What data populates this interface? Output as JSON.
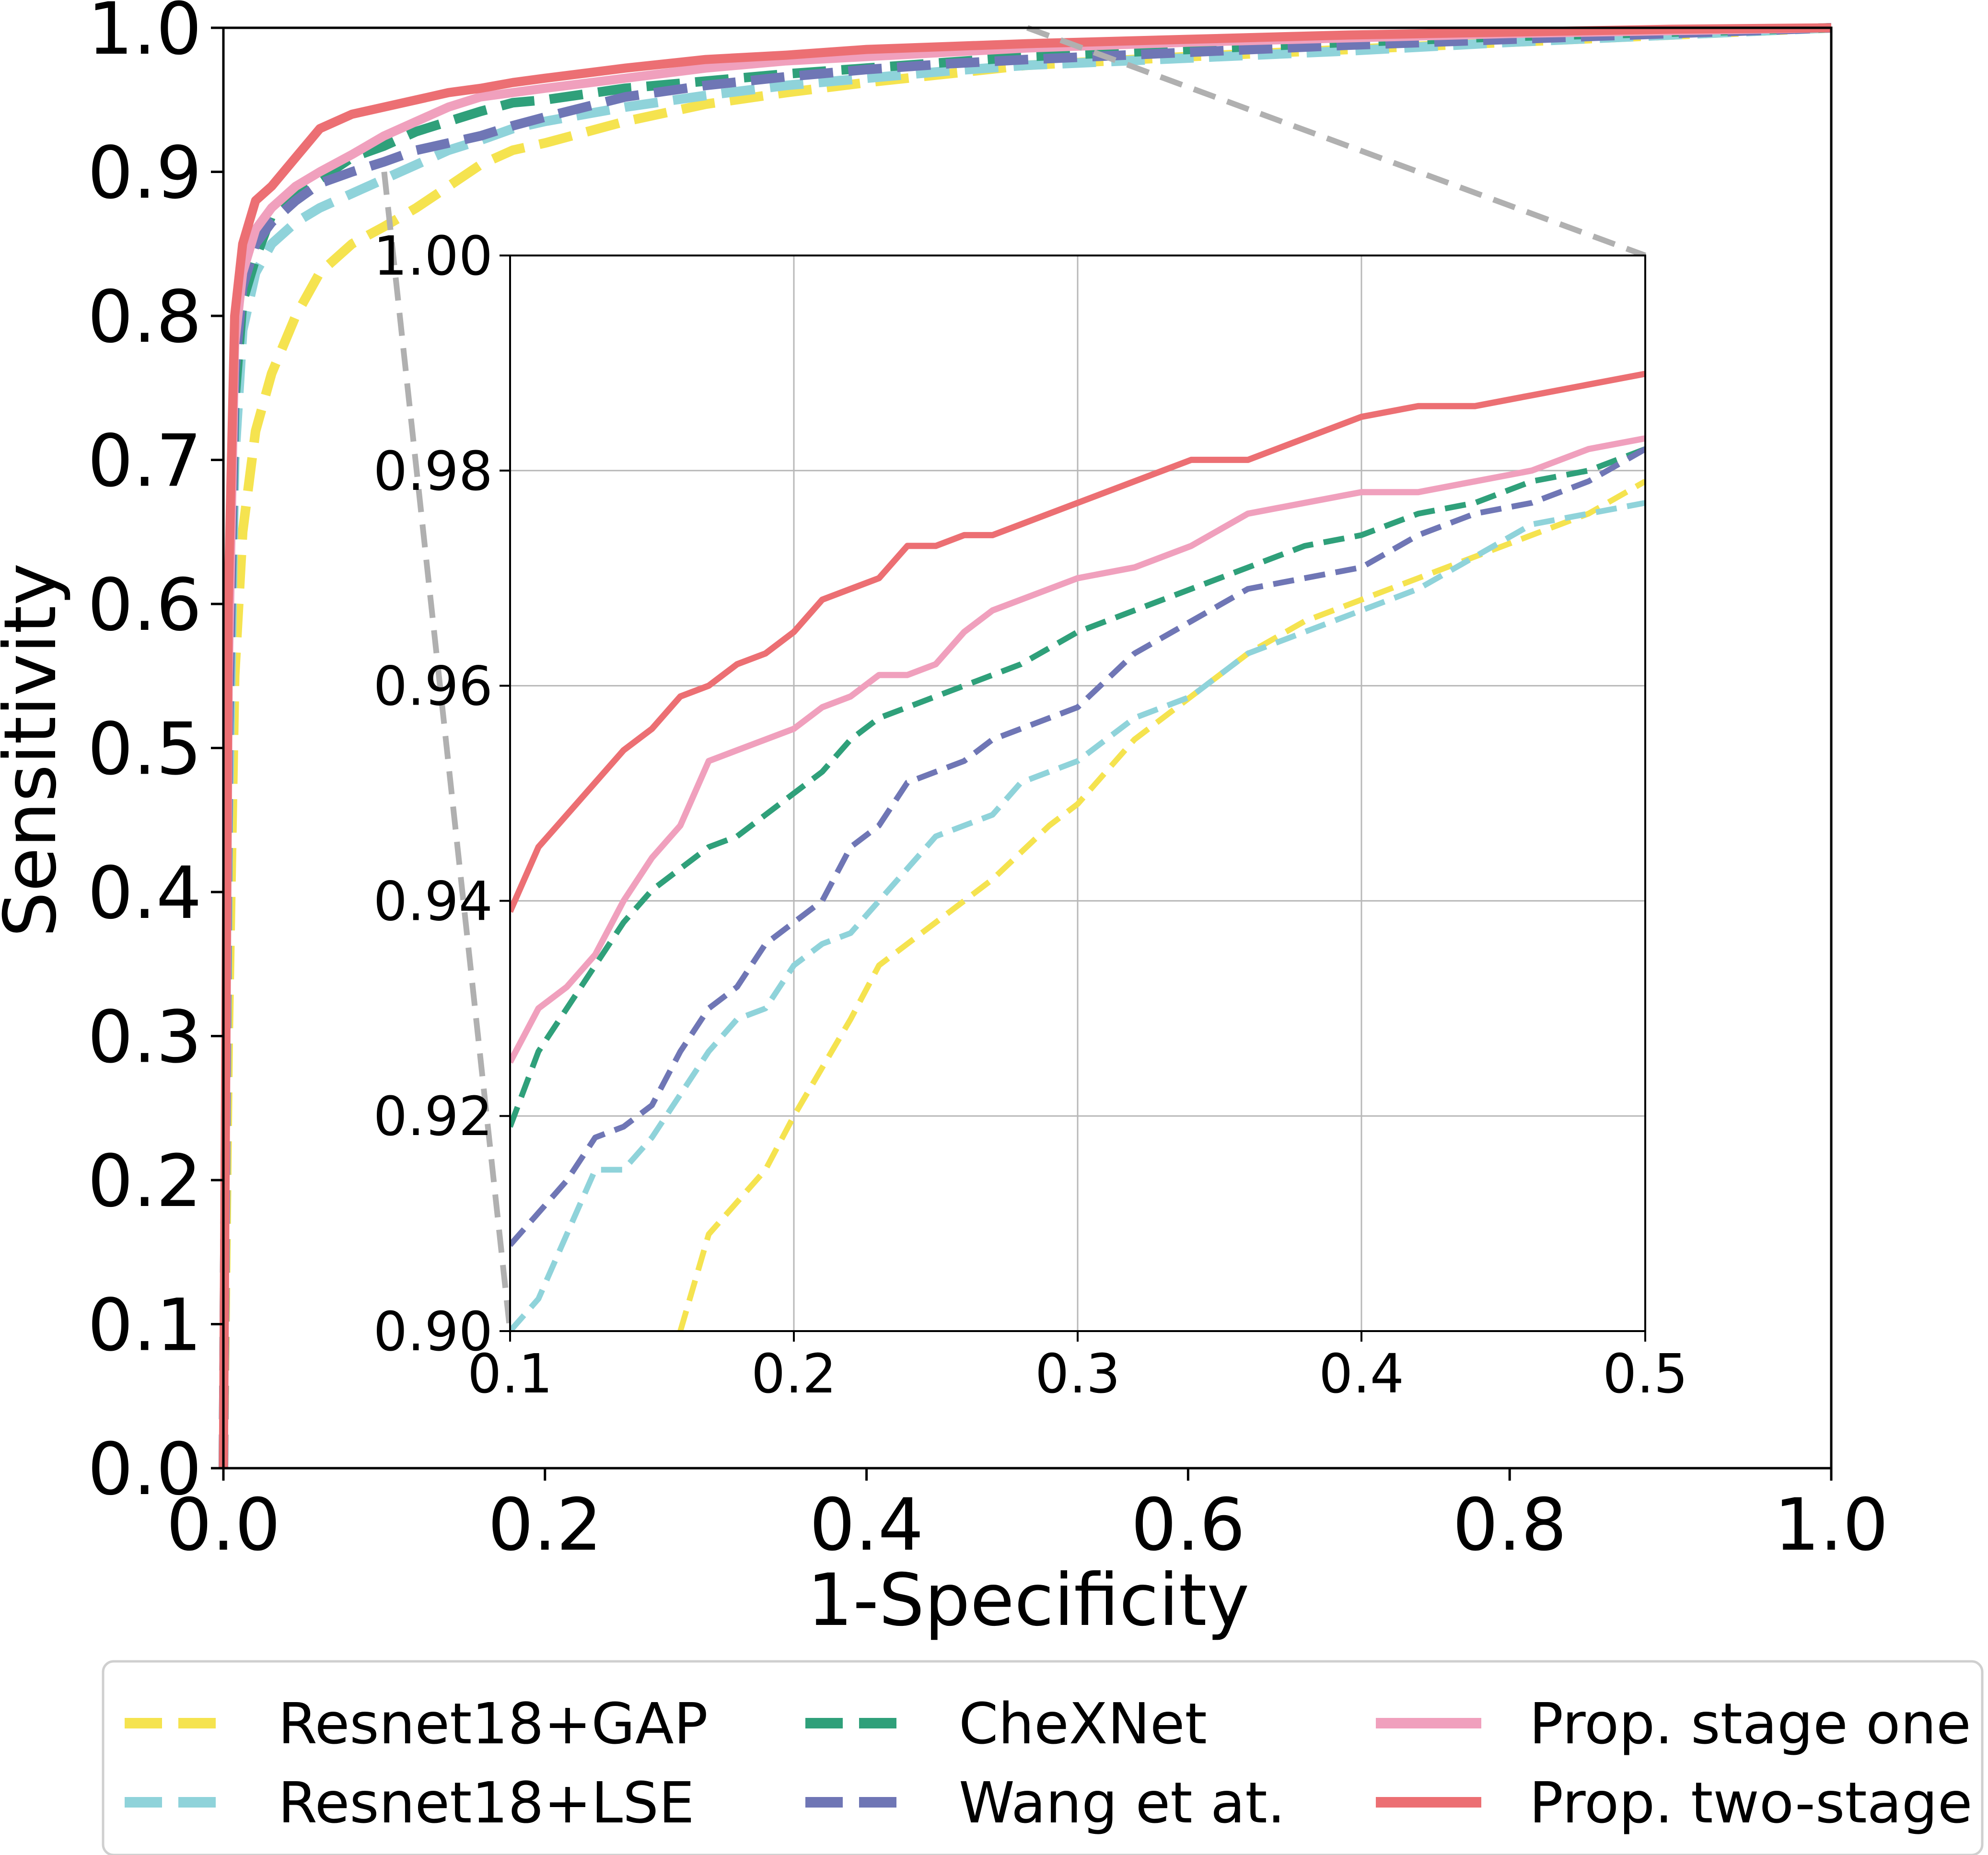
{
  "chart_data": [
    {
      "type": "line",
      "title": "",
      "xlabel": "1-Specificity",
      "ylabel": "Sensitivity",
      "xlim": [
        0,
        1
      ],
      "ylim": [
        0,
        1
      ],
      "xticks": [
        0.0,
        0.2,
        0.4,
        0.6,
        0.8,
        1.0
      ],
      "yticks": [
        0.0,
        0.1,
        0.2,
        0.3,
        0.4,
        0.5,
        0.6,
        0.7,
        0.8,
        0.9,
        1.0
      ],
      "xtick_labels": [
        "0.0",
        "0.2",
        "0.4",
        "0.6",
        "0.8",
        "1.0"
      ],
      "ytick_labels": [
        "0.0",
        "0.1",
        "0.2",
        "0.3",
        "0.4",
        "0.5",
        "0.6",
        "0.7",
        "0.8",
        "0.9",
        "1.0"
      ],
      "grid": false,
      "legend_position": "bottom",
      "series": [
        {
          "name": "Resnet18+GAP",
          "color": "#f5e34f",
          "style": "dashed",
          "x": [
            0,
            0.003,
            0.007,
            0.012,
            0.02,
            0.03,
            0.045,
            0.06,
            0.08,
            0.1,
            0.12,
            0.14,
            0.16,
            0.18,
            0.2,
            0.25,
            0.3,
            0.35,
            0.4,
            0.45,
            0.5,
            0.6,
            0.7,
            0.8,
            0.9,
            1.0
          ],
          "y": [
            0,
            0.3,
            0.55,
            0.65,
            0.72,
            0.76,
            0.8,
            0.83,
            0.85,
            0.862,
            0.875,
            0.89,
            0.905,
            0.915,
            0.92,
            0.935,
            0.947,
            0.955,
            0.962,
            0.968,
            0.974,
            0.98,
            0.985,
            0.99,
            0.995,
            1.0
          ]
        },
        {
          "name": "Resnet18+LSE",
          "color": "#8fd3da",
          "style": "dashed",
          "x": [
            0,
            0.003,
            0.007,
            0.012,
            0.02,
            0.03,
            0.045,
            0.06,
            0.08,
            0.1,
            0.12,
            0.14,
            0.16,
            0.18,
            0.2,
            0.25,
            0.3,
            0.35,
            0.4,
            0.45,
            0.5,
            0.6,
            0.7,
            0.8,
            0.9,
            1.0
          ],
          "y": [
            0,
            0.45,
            0.7,
            0.79,
            0.83,
            0.85,
            0.865,
            0.875,
            0.885,
            0.895,
            0.905,
            0.915,
            0.922,
            0.93,
            0.935,
            0.945,
            0.953,
            0.96,
            0.965,
            0.97,
            0.974,
            0.979,
            0.984,
            0.99,
            0.995,
            1.0
          ]
        },
        {
          "name": "CheXNet",
          "color": "#2fa07a",
          "style": "dashed",
          "x": [
            0,
            0.003,
            0.007,
            0.012,
            0.02,
            0.03,
            0.045,
            0.06,
            0.08,
            0.1,
            0.12,
            0.14,
            0.16,
            0.18,
            0.2,
            0.25,
            0.3,
            0.35,
            0.4,
            0.45,
            0.5,
            0.6,
            0.7,
            0.8,
            0.9,
            1.0
          ],
          "y": [
            0,
            0.5,
            0.74,
            0.81,
            0.84,
            0.87,
            0.885,
            0.895,
            0.91,
            0.918,
            0.928,
            0.935,
            0.942,
            0.948,
            0.95,
            0.958,
            0.963,
            0.968,
            0.972,
            0.976,
            0.98,
            0.985,
            0.99,
            0.994,
            0.997,
            1.0
          ]
        },
        {
          "name": "Wang et at.",
          "color": "#6f76b5",
          "style": "dashed",
          "x": [
            0,
            0.003,
            0.007,
            0.012,
            0.02,
            0.03,
            0.045,
            0.06,
            0.08,
            0.1,
            0.12,
            0.14,
            0.16,
            0.18,
            0.2,
            0.25,
            0.3,
            0.35,
            0.4,
            0.45,
            0.5,
            0.6,
            0.7,
            0.8,
            0.9,
            1.0
          ],
          "y": [
            0,
            0.5,
            0.76,
            0.82,
            0.85,
            0.865,
            0.88,
            0.892,
            0.9,
            0.907,
            0.915,
            0.92,
            0.925,
            0.932,
            0.938,
            0.952,
            0.96,
            0.966,
            0.971,
            0.975,
            0.978,
            0.983,
            0.988,
            0.992,
            0.996,
            1.0
          ]
        },
        {
          "name": "Prop. stage one",
          "color": "#f0a0bd",
          "style": "solid",
          "x": [
            0,
            0.003,
            0.007,
            0.012,
            0.02,
            0.03,
            0.045,
            0.06,
            0.08,
            0.1,
            0.12,
            0.14,
            0.16,
            0.18,
            0.2,
            0.25,
            0.3,
            0.35,
            0.4,
            0.45,
            0.5,
            0.6,
            0.7,
            0.8,
            0.9,
            1.0
          ],
          "y": [
            0,
            0.55,
            0.78,
            0.83,
            0.86,
            0.875,
            0.89,
            0.9,
            0.912,
            0.925,
            0.935,
            0.945,
            0.952,
            0.955,
            0.958,
            0.965,
            0.972,
            0.977,
            0.98,
            0.983,
            0.986,
            0.99,
            0.993,
            0.996,
            0.998,
            1.0
          ]
        },
        {
          "name": "Prop. two-stage",
          "color": "#ec6f73",
          "style": "solid",
          "x": [
            0,
            0.003,
            0.007,
            0.012,
            0.02,
            0.03,
            0.045,
            0.06,
            0.08,
            0.1,
            0.12,
            0.14,
            0.16,
            0.18,
            0.2,
            0.25,
            0.3,
            0.35,
            0.4,
            0.45,
            0.5,
            0.6,
            0.7,
            0.8,
            0.9,
            1.0
          ],
          "y": [
            0,
            0.6,
            0.8,
            0.85,
            0.88,
            0.89,
            0.91,
            0.93,
            0.94,
            0.945,
            0.95,
            0.955,
            0.958,
            0.962,
            0.965,
            0.972,
            0.978,
            0.981,
            0.985,
            0.987,
            0.989,
            0.992,
            0.995,
            0.997,
            0.999,
            1.0
          ]
        }
      ]
    },
    {
      "type": "line",
      "title": "",
      "xlabel": "",
      "ylabel": "",
      "xlim": [
        0.1,
        0.5
      ],
      "ylim": [
        0.9,
        1.0
      ],
      "xticks": [
        0.1,
        0.2,
        0.3,
        0.4,
        0.5
      ],
      "yticks": [
        0.9,
        0.92,
        0.94,
        0.96,
        0.98,
        1.0
      ],
      "xtick_labels": [
        "0.1",
        "0.2",
        "0.3",
        "0.4",
        "0.5"
      ],
      "ytick_labels": [
        "0.90",
        "0.92",
        "0.94",
        "0.96",
        "0.98",
        "1.00"
      ],
      "grid": true,
      "legend_position": "none",
      "series": [
        {
          "name": "Resnet18+GAP",
          "color": "#f5e34f",
          "style": "dashed",
          "x": [
            0.16,
            0.17,
            0.19,
            0.2,
            0.22,
            0.23,
            0.25,
            0.27,
            0.29,
            0.3,
            0.32,
            0.34,
            0.36,
            0.38,
            0.4,
            0.42,
            0.44,
            0.46,
            0.48,
            0.5
          ],
          "y": [
            0.9,
            0.909,
            0.915,
            0.92,
            0.929,
            0.934,
            0.938,
            0.942,
            0.947,
            0.949,
            0.955,
            0.959,
            0.963,
            0.966,
            0.968,
            0.97,
            0.972,
            0.974,
            0.976,
            0.979
          ]
        },
        {
          "name": "Resnet18+LSE",
          "color": "#8fd3da",
          "style": "dashed",
          "x": [
            0.1,
            0.11,
            0.12,
            0.13,
            0.14,
            0.15,
            0.16,
            0.17,
            0.18,
            0.19,
            0.2,
            0.21,
            0.22,
            0.23,
            0.24,
            0.25,
            0.26,
            0.27,
            0.28,
            0.3,
            0.32,
            0.34,
            0.36,
            0.38,
            0.4,
            0.42,
            0.44,
            0.46,
            0.48,
            0.5
          ],
          "y": [
            0.9,
            0.903,
            0.909,
            0.915,
            0.915,
            0.918,
            0.922,
            0.926,
            0.929,
            0.93,
            0.934,
            0.936,
            0.937,
            0.94,
            0.943,
            0.946,
            0.947,
            0.948,
            0.951,
            0.953,
            0.957,
            0.959,
            0.963,
            0.965,
            0.967,
            0.969,
            0.972,
            0.975,
            0.976,
            0.977
          ]
        },
        {
          "name": "CheXNet",
          "color": "#2fa07a",
          "style": "dashed",
          "x": [
            0.1,
            0.11,
            0.12,
            0.13,
            0.14,
            0.15,
            0.16,
            0.17,
            0.18,
            0.19,
            0.2,
            0.21,
            0.22,
            0.23,
            0.24,
            0.25,
            0.26,
            0.27,
            0.28,
            0.3,
            0.32,
            0.34,
            0.36,
            0.38,
            0.4,
            0.42,
            0.44,
            0.46,
            0.48,
            0.5
          ],
          "y": [
            0.919,
            0.926,
            0.93,
            0.934,
            0.938,
            0.941,
            0.943,
            0.945,
            0.946,
            0.948,
            0.95,
            0.952,
            0.955,
            0.957,
            0.958,
            0.959,
            0.96,
            0.961,
            0.962,
            0.965,
            0.967,
            0.969,
            0.971,
            0.973,
            0.974,
            0.976,
            0.977,
            0.979,
            0.98,
            0.982
          ]
        },
        {
          "name": "Wang et at.",
          "color": "#6f76b5",
          "style": "dashed",
          "x": [
            0.1,
            0.11,
            0.12,
            0.13,
            0.14,
            0.15,
            0.16,
            0.17,
            0.18,
            0.19,
            0.2,
            0.21,
            0.22,
            0.23,
            0.24,
            0.25,
            0.26,
            0.27,
            0.28,
            0.3,
            0.32,
            0.34,
            0.36,
            0.38,
            0.4,
            0.42,
            0.44,
            0.46,
            0.48,
            0.5
          ],
          "y": [
            0.908,
            0.911,
            0.914,
            0.918,
            0.919,
            0.921,
            0.926,
            0.93,
            0.932,
            0.936,
            0.938,
            0.94,
            0.945,
            0.947,
            0.951,
            0.952,
            0.953,
            0.955,
            0.956,
            0.958,
            0.963,
            0.966,
            0.969,
            0.97,
            0.971,
            0.974,
            0.976,
            0.977,
            0.979,
            0.982
          ]
        },
        {
          "name": "Prop. stage one",
          "color": "#f0a0bd",
          "style": "solid",
          "x": [
            0.1,
            0.11,
            0.12,
            0.13,
            0.14,
            0.15,
            0.16,
            0.17,
            0.18,
            0.19,
            0.2,
            0.21,
            0.22,
            0.23,
            0.24,
            0.25,
            0.26,
            0.27,
            0.28,
            0.3,
            0.32,
            0.34,
            0.36,
            0.38,
            0.4,
            0.42,
            0.44,
            0.46,
            0.48,
            0.5
          ],
          "y": [
            0.925,
            0.93,
            0.932,
            0.935,
            0.94,
            0.944,
            0.947,
            0.953,
            0.954,
            0.955,
            0.956,
            0.958,
            0.959,
            0.961,
            0.961,
            0.962,
            0.965,
            0.967,
            0.968,
            0.97,
            0.971,
            0.973,
            0.976,
            0.977,
            0.978,
            0.978,
            0.979,
            0.98,
            0.982,
            0.983
          ]
        },
        {
          "name": "Prop. two-stage",
          "color": "#ec6f73",
          "style": "solid",
          "x": [
            0.1,
            0.11,
            0.12,
            0.13,
            0.14,
            0.15,
            0.16,
            0.17,
            0.18,
            0.19,
            0.2,
            0.21,
            0.22,
            0.23,
            0.24,
            0.25,
            0.26,
            0.27,
            0.28,
            0.3,
            0.32,
            0.34,
            0.36,
            0.38,
            0.4,
            0.42,
            0.44,
            0.46,
            0.48,
            0.5
          ],
          "y": [
            0.939,
            0.945,
            0.948,
            0.951,
            0.954,
            0.956,
            0.959,
            0.96,
            0.962,
            0.963,
            0.965,
            0.968,
            0.969,
            0.97,
            0.973,
            0.973,
            0.974,
            0.974,
            0.975,
            0.977,
            0.979,
            0.981,
            0.981,
            0.983,
            0.985,
            0.986,
            0.986,
            0.987,
            0.988,
            0.989
          ]
        }
      ]
    }
  ],
  "legend": {
    "items": [
      {
        "label": "Resnet18+GAP",
        "color": "#f5e34f",
        "style": "dashed"
      },
      {
        "label": "Resnet18+LSE",
        "color": "#8fd3da",
        "style": "dashed"
      },
      {
        "label": "CheXNet",
        "color": "#2fa07a",
        "style": "dashed"
      },
      {
        "label": "Wang et at.",
        "color": "#6f76b5",
        "style": "dashed"
      },
      {
        "label": "Prop. stage one",
        "color": "#f0a0bd",
        "style": "solid"
      },
      {
        "label": "Prop. two-stage",
        "color": "#ec6f73",
        "style": "solid"
      }
    ]
  }
}
